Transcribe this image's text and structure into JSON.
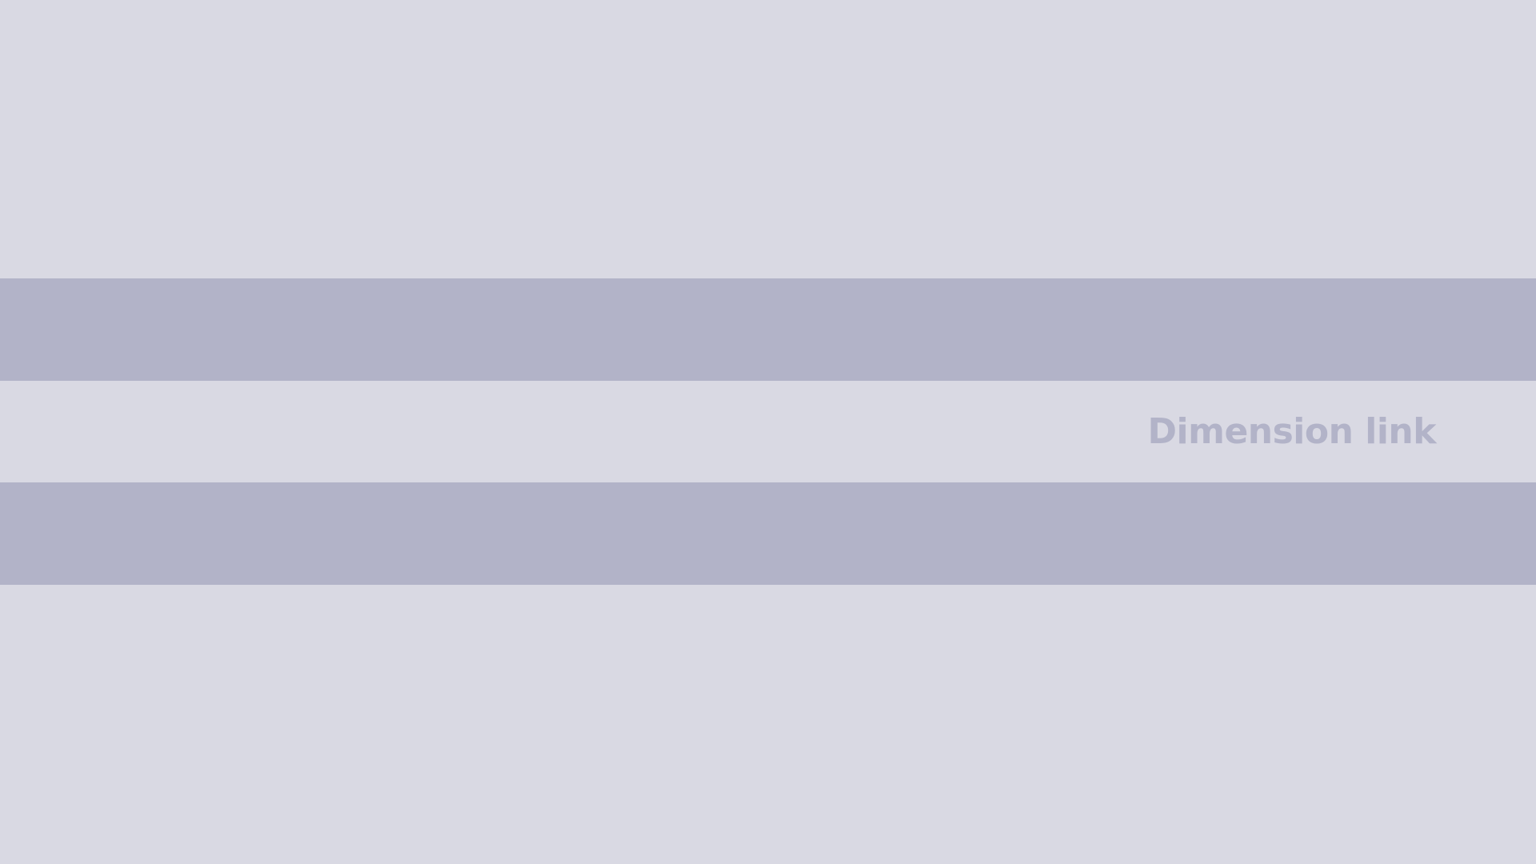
{
  "main": {
    "link_label": "Dimension link"
  },
  "colors": {
    "background": "#d9d9e3",
    "band": "#b2b3c8",
    "link_text": "#b2b3c8"
  }
}
